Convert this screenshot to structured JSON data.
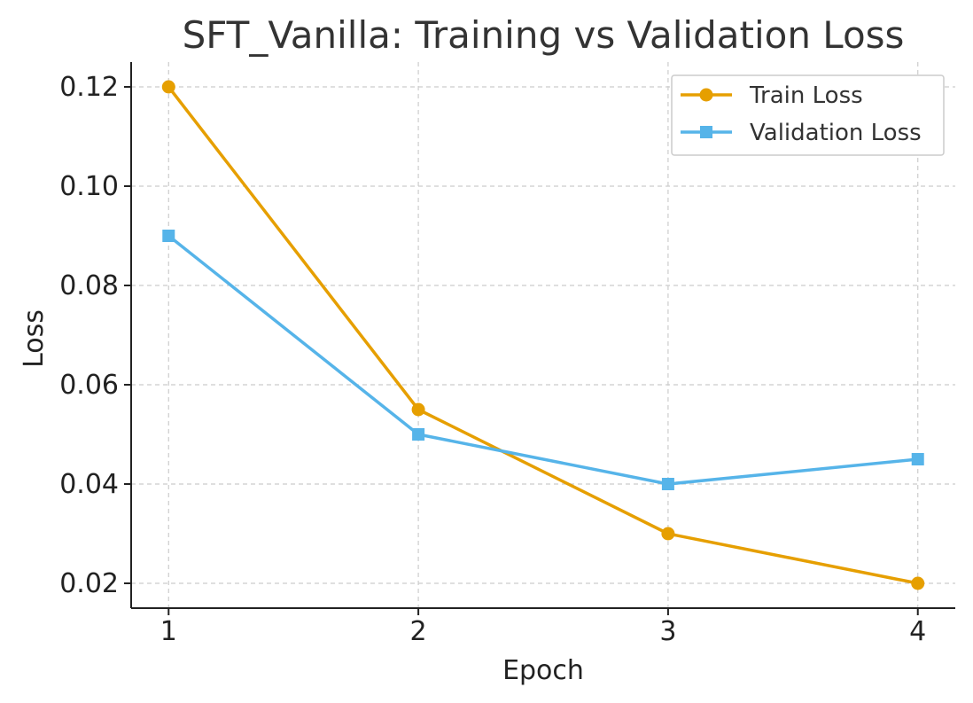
{
  "chart_data": {
    "type": "line",
    "title": "SFT_Vanilla: Training vs Validation Loss",
    "xlabel": "Epoch",
    "ylabel": "Loss",
    "x": [
      1,
      2,
      3,
      4
    ],
    "x_tick_labels": [
      "1",
      "2",
      "3",
      "4"
    ],
    "y_ticks": [
      0.02,
      0.04,
      0.06,
      0.08,
      0.1,
      0.12
    ],
    "y_tick_labels": [
      "0.02",
      "0.04",
      "0.06",
      "0.08",
      "0.10",
      "0.12"
    ],
    "xlim": [
      0.85,
      4.15
    ],
    "ylim": [
      0.015,
      0.125
    ],
    "grid": true,
    "legend_position": "top-right",
    "series": [
      {
        "name": "Train Loss",
        "values": [
          0.12,
          0.055,
          0.03,
          0.02
        ],
        "color": "#E69F00",
        "marker": "circle"
      },
      {
        "name": "Validation Loss",
        "values": [
          0.09,
          0.05,
          0.04,
          0.045
        ],
        "color": "#56B4E9",
        "marker": "square"
      }
    ]
  }
}
